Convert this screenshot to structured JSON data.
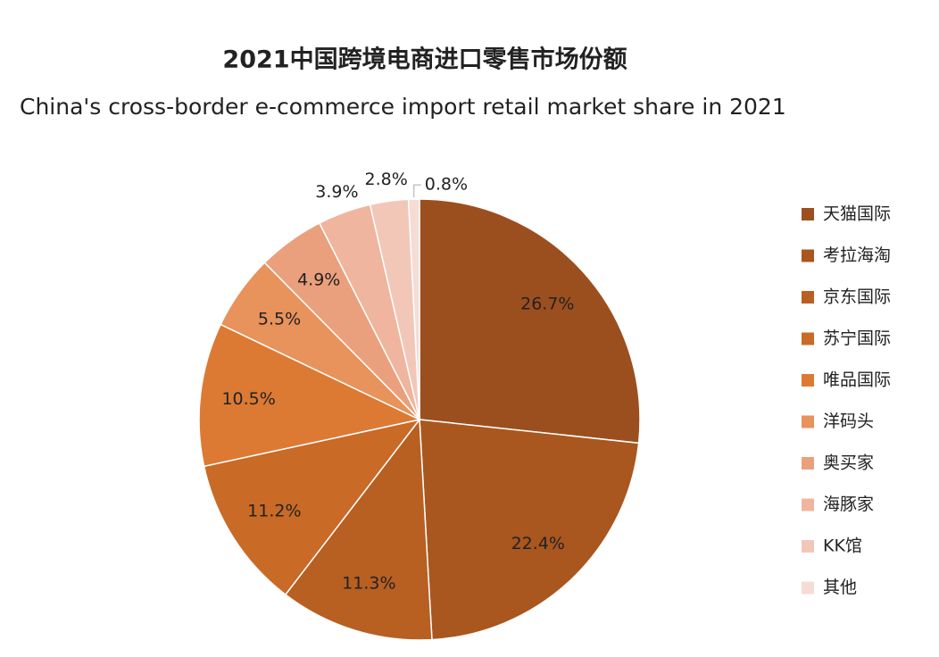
{
  "chart_data": {
    "type": "pie",
    "title": "2021中国跨境电商进口零售市场份额",
    "subtitle": "China's cross-border e-commerce import retail market share in 2021",
    "categories": [
      "天猫国际",
      "考拉海淘",
      "京东国际",
      "苏宁国际",
      "唯品国际",
      "洋码头",
      "奥买家",
      "海豚家",
      "KK馆",
      "其他"
    ],
    "values": [
      26.7,
      22.4,
      11.3,
      11.2,
      10.5,
      5.5,
      4.9,
      3.9,
      2.8,
      0.8
    ],
    "value_labels": [
      "26.7%",
      "22.4%",
      "11.3%",
      "11.2%",
      "10.5%",
      "5.5%",
      "4.9%",
      "3.9%",
      "2.8%",
      "0.8%"
    ],
    "colors": [
      "#9c4f1e",
      "#a9561f",
      "#b85f22",
      "#c96a26",
      "#dc7a34",
      "#e8925c",
      "#eaa07c",
      "#efb59e",
      "#f2c7b8",
      "#f5dcd4"
    ],
    "legend": "right"
  }
}
